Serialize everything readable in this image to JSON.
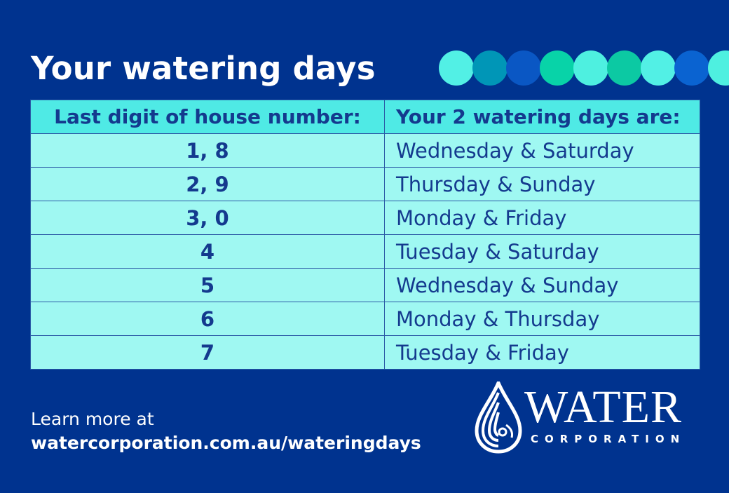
{
  "title": "Your watering days",
  "decor": {
    "dot_colors": [
      "#52f0e5",
      "#0096b7",
      "#0a57c4",
      "#08d3a8",
      "#4ef0e0",
      "#0cc9a3",
      "#52f0e5",
      "#0a63d1",
      "#4ef0e0"
    ]
  },
  "table": {
    "headers": [
      "Last digit of house number:",
      "Your 2 watering days are:"
    ],
    "rows": [
      {
        "digits": "1, 8",
        "days": "Wednesday & Saturday"
      },
      {
        "digits": "2, 9",
        "days": "Thursday & Sunday"
      },
      {
        "digits": "3, 0",
        "days": "Monday & Friday"
      },
      {
        "digits": "4",
        "days": "Tuesday & Saturday"
      },
      {
        "digits": "5",
        "days": "Wednesday & Sunday"
      },
      {
        "digits": "6",
        "days": "Monday & Thursday"
      },
      {
        "digits": "7",
        "days": "Tuesday & Friday"
      }
    ]
  },
  "footer": {
    "learn_more": "Learn more at",
    "url": "watercorporation.com.au/wateringdays"
  },
  "logo": {
    "name": "WATER",
    "sub": "CORPORATION",
    "icon": "water-drop-icon"
  },
  "colors": {
    "background": "#00338f",
    "header_cell": "#4feae5",
    "body_cell": "#9ff8f2",
    "table_text": "#143a8e"
  }
}
